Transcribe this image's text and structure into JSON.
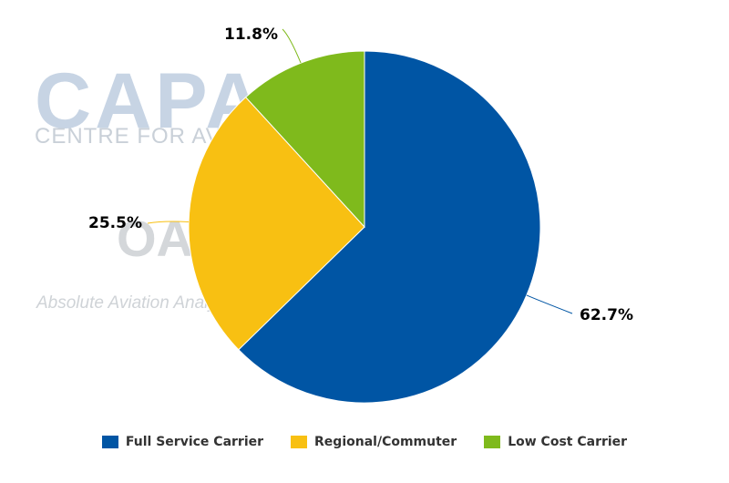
{
  "watermark": {
    "brand1": "CAPA",
    "brand1_sub": "CENTRE FOR AVIATION",
    "brand2": "OAG",
    "brand2_sub": "Absolute Aviation Analysis"
  },
  "chart_data": {
    "type": "pie",
    "title": "",
    "series": [
      {
        "name": "Full Service Carrier",
        "value": 62.7,
        "label": "62.7%",
        "color": "#0055a4"
      },
      {
        "name": "Regional/Commuter",
        "value": 25.5,
        "label": "25.5%",
        "color": "#f8c012"
      },
      {
        "name": "Low Cost Carrier",
        "value": 11.8,
        "label": "11.8%",
        "color": "#7fba1c"
      }
    ],
    "legend_position": "bottom",
    "start_angle_deg": 0,
    "direction": "clockwise"
  }
}
